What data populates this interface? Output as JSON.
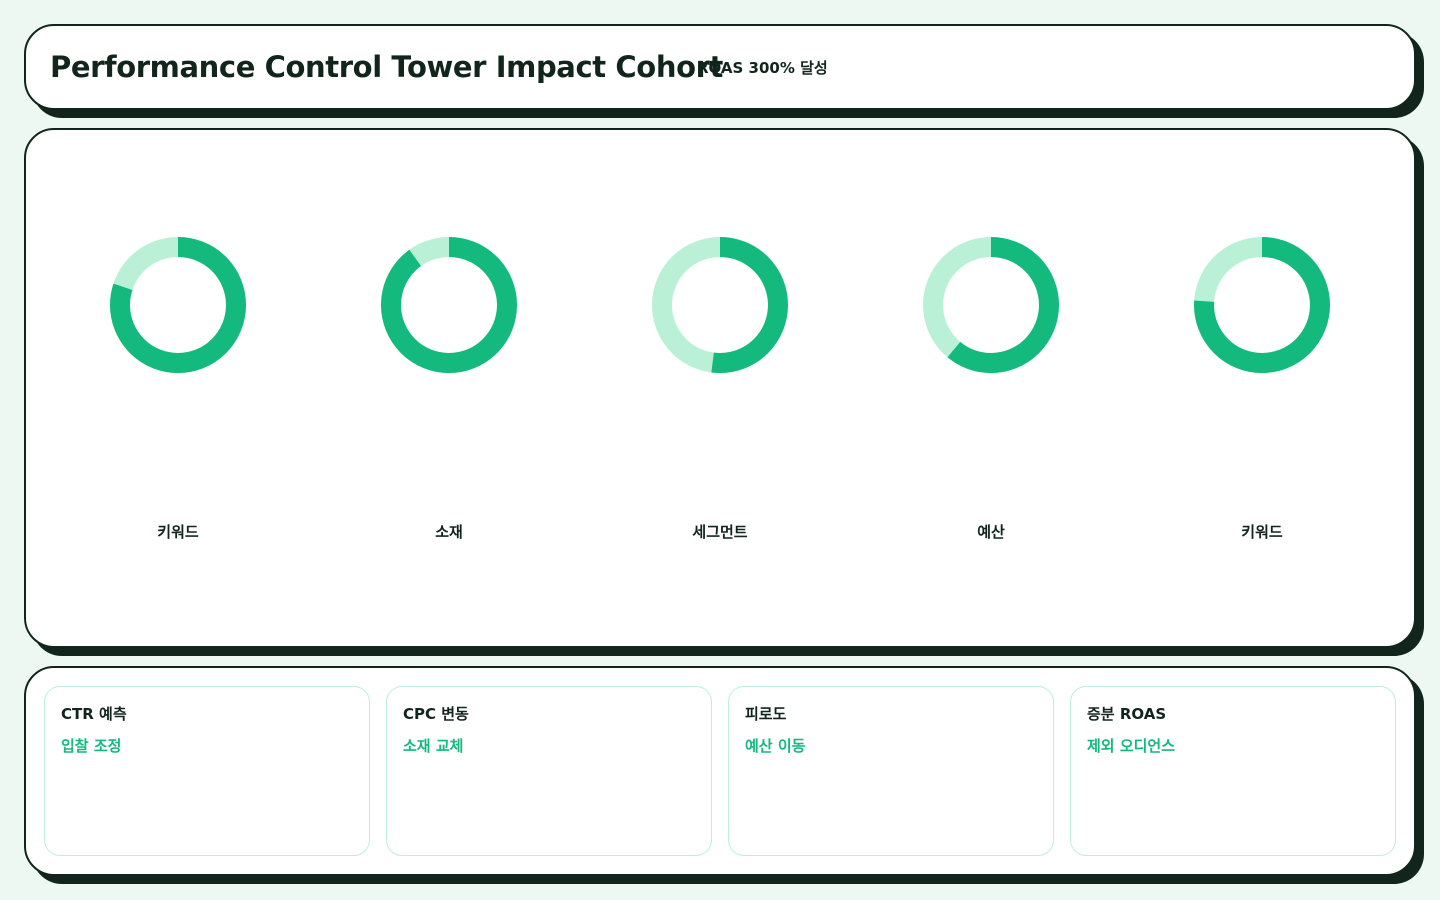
{
  "header": {
    "title": "Performance Control Tower Impact Cohort",
    "badge": "ROAS 300% 달성"
  },
  "colors": {
    "accent": "#14b97e",
    "accent_light": "#b9f0d6",
    "ink": "#11251d",
    "background": "#eef8f3"
  },
  "chart_data": {
    "type": "donut",
    "categories": [
      "키워드",
      "소재",
      "세그먼트",
      "예산",
      "키워드"
    ],
    "values": [
      0.8,
      0.9,
      0.52,
      0.61,
      0.76
    ],
    "value_unit": "fraction of ring filled"
  },
  "cards": [
    {
      "title": "CTR 예측",
      "value": "입찰 조정"
    },
    {
      "title": "CPC 변동",
      "value": "소재 교체"
    },
    {
      "title": "피로도",
      "value": "예산 이동"
    },
    {
      "title": "증분 ROAS",
      "value": "제외 오디언스"
    }
  ]
}
